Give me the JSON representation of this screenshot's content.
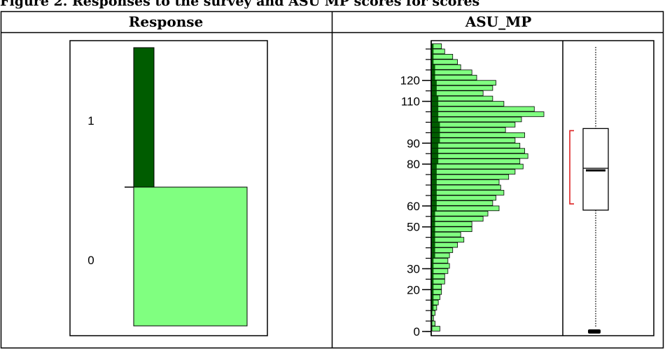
{
  "caption": "Figure 2. Responses to the survey and ASU MP scores for scores",
  "colors": {
    "dark_green": "#005c00",
    "light_green": "#80ff80",
    "bracket_red": "#dd2222",
    "line": "#000000"
  },
  "chart_data": [
    {
      "type": "bar",
      "title": "Response",
      "categories": [
        "0",
        "1"
      ],
      "series": [
        {
          "name": "1",
          "values": [
            0,
            1
          ],
          "color": "#005c00"
        },
        {
          "name": "0",
          "values": [
            1,
            0
          ],
          "color": "#80ff80"
        }
      ],
      "count_share": {
        "0": 0.83,
        "1": 0.17
      },
      "bar_width_fraction": {
        "0": 0.86,
        "1": 0.15
      },
      "grid": false
    },
    {
      "type": "bar",
      "orientation": "horizontal",
      "title": "ASU_MP",
      "xlabel": "",
      "ylabel": "",
      "ylim": [
        -2,
        139
      ],
      "yticks": [
        0,
        20,
        30,
        50,
        60,
        80,
        90,
        110,
        120
      ],
      "bin_width": 2.5,
      "x_units": "relative length",
      "bins": [
        0,
        2.5,
        5,
        7.5,
        10,
        12.5,
        15,
        17.5,
        20,
        22.5,
        25,
        27.5,
        30,
        32.5,
        35,
        37.5,
        40,
        42.5,
        45,
        47.5,
        50,
        52.5,
        55,
        57.5,
        60,
        62.5,
        65,
        67.5,
        70,
        72.5,
        75,
        77.5,
        80,
        82.5,
        85,
        87.5,
        90,
        92.5,
        95,
        97.5,
        100,
        102.5,
        105,
        107.5,
        110,
        112.5,
        115,
        117.5,
        120,
        122.5,
        125,
        127.5,
        130,
        132.5,
        135
      ],
      "series": [
        {
          "name": "0",
          "color": "#80ff80",
          "values": [
            5,
            2,
            1,
            2,
            3,
            4,
            5,
            6,
            6,
            8,
            8,
            10,
            11,
            10,
            11,
            13,
            16,
            20,
            18,
            25,
            25,
            32,
            35,
            42,
            38,
            40,
            45,
            43,
            42,
            48,
            52,
            57,
            55,
            60,
            58,
            55,
            52,
            58,
            46,
            52,
            56,
            70,
            64,
            45,
            38,
            32,
            38,
            40,
            28,
            25,
            18,
            16,
            13,
            8,
            6
          ]
        },
        {
          "name": "1",
          "color": "#005c00",
          "values": [
            0,
            0,
            0,
            0,
            1,
            1,
            1,
            1,
            1,
            1,
            1,
            1,
            1,
            1,
            2,
            2,
            2,
            2,
            2,
            2,
            2,
            2,
            2,
            3,
            3,
            3,
            3,
            3,
            3,
            3,
            3,
            3,
            4,
            4,
            4,
            4,
            5,
            5,
            5,
            5,
            4,
            4,
            4,
            4,
            4,
            3,
            3,
            3,
            2,
            2,
            2,
            1,
            1,
            1,
            1
          ]
        }
      ],
      "boxplot": {
        "min": 0,
        "q1": 58,
        "median": 78,
        "mean": 77,
        "q3": 97,
        "max": 136,
        "bracket": [
          61,
          96
        ],
        "outliers": [
          0
        ]
      },
      "grid": false
    }
  ]
}
